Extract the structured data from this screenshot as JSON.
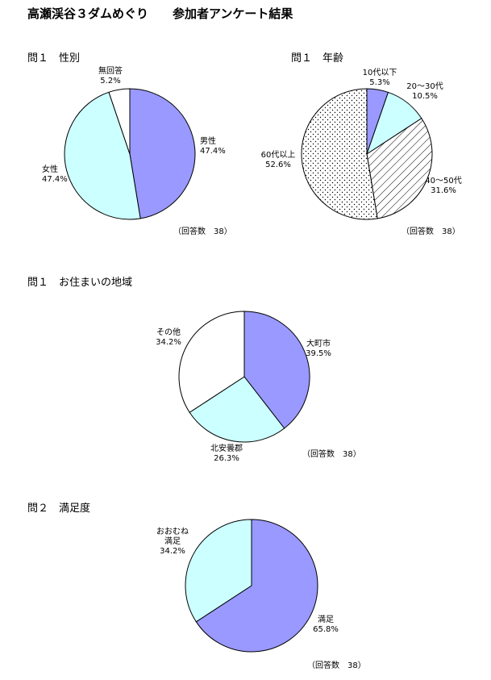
{
  "page": {
    "title": "高瀬渓谷３ダムめぐり　　参加者アンケート結果"
  },
  "colors": {
    "blue": "#9999ff",
    "lightcyan": "#ccffff",
    "white": "#ffffff",
    "outline": "#000000"
  },
  "chart_data": [
    {
      "type": "pie",
      "title": "問１　性別",
      "note": "（回答数　38）",
      "slices": [
        {
          "label": "男性",
          "value": 47.4,
          "display": "47.4%",
          "fill": "blue"
        },
        {
          "label": "女性",
          "value": 47.4,
          "display": "47.4%",
          "fill": "lightcyan"
        },
        {
          "label": "無回答",
          "value": 5.2,
          "display": "5.2%",
          "fill": "white"
        }
      ]
    },
    {
      "type": "pie",
      "title": "問１　年齢",
      "note": "（回答数　38）",
      "slices": [
        {
          "label": "10代以下",
          "value": 5.3,
          "display": "5.3%",
          "fill": "blue"
        },
        {
          "label": "20～30代",
          "value": 10.5,
          "display": "10.5%",
          "fill": "lightcyan"
        },
        {
          "label": "40～50代",
          "value": 31.6,
          "display": "31.6%",
          "fill": "hatch"
        },
        {
          "label": "60代以上",
          "value": 52.6,
          "display": "52.6%",
          "fill": "dots"
        }
      ]
    },
    {
      "type": "pie",
      "title": "問１　お住まいの地域",
      "note": "（回答数　38）",
      "slices": [
        {
          "label": "大町市",
          "value": 39.5,
          "display": "39.5%",
          "fill": "blue"
        },
        {
          "label": "北安曇郡",
          "value": 26.3,
          "display": "26.3%",
          "fill": "lightcyan"
        },
        {
          "label": "その他",
          "value": 34.2,
          "display": "34.2%",
          "fill": "white"
        }
      ]
    },
    {
      "type": "pie",
      "title": "問２　満足度",
      "note": "（回答数　38）",
      "slices": [
        {
          "label": "満足",
          "value": 65.8,
          "display": "65.8%",
          "fill": "blue"
        },
        {
          "label": "おおむね\n満足",
          "value": 34.2,
          "display": "34.2%",
          "fill": "lightcyan"
        }
      ]
    }
  ]
}
